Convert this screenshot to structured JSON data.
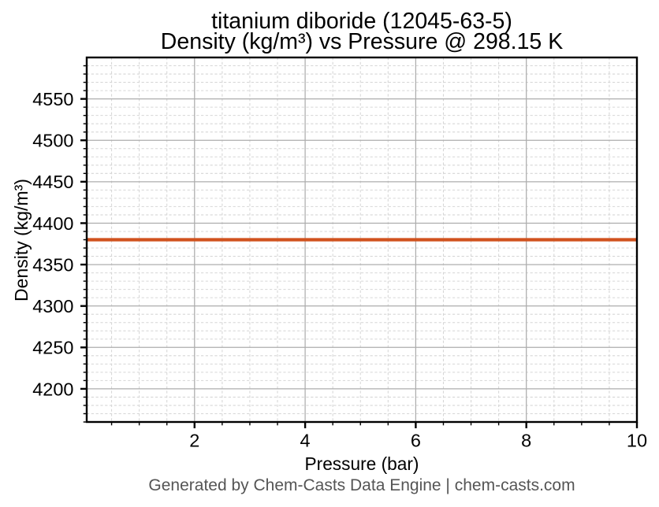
{
  "title": {
    "line1": "titanium diboride (12045-63-5)",
    "line2": "Density (kg/m³) vs Pressure @ 298.15 K"
  },
  "axes": {
    "xlabel": "Pressure (bar)",
    "ylabel": "Density (kg/m³)"
  },
  "footer": {
    "text": "Generated by Chem-Casts Data Engine | chem-casts.com"
  },
  "chart_data": {
    "type": "line",
    "title": "titanium diboride (12045-63-5) Density (kg/m³) vs Pressure @ 298.15 K",
    "xlabel": "Pressure (bar)",
    "ylabel": "Density (kg/m³)",
    "series": [
      {
        "name": "density",
        "color": "#d0521e",
        "x": [
          0.05,
          10
        ],
        "y": [
          4380,
          4380
        ],
        "constant_value": 4380
      }
    ],
    "xlim": [
      0.05,
      10
    ],
    "ylim": [
      4160,
      4600
    ],
    "xticks": [
      2,
      4,
      6,
      8,
      10
    ],
    "yticks": [
      4200,
      4250,
      4300,
      4350,
      4400,
      4450,
      4500,
      4550
    ],
    "x_minor_step": 0.5,
    "y_minor_step": 10,
    "grid": {
      "major": true,
      "minor": true
    },
    "style": {
      "line_width": 4.2,
      "spine_color": "#000000",
      "grid_major_color": "#adadad",
      "grid_minor_color": "#d6d6d6",
      "tick_label_color": "#000000",
      "footer_color": "#555555"
    }
  }
}
